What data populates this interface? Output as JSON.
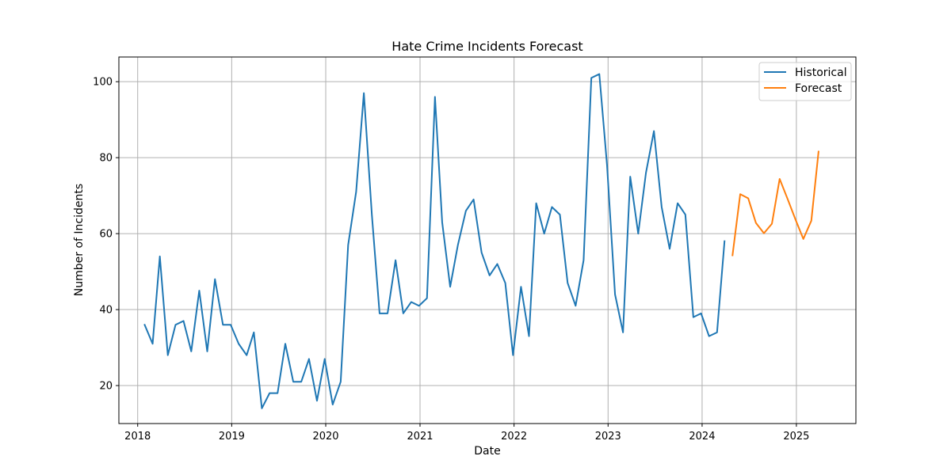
{
  "chart_data": {
    "type": "line",
    "title": "Hate Crime Incidents Forecast",
    "xlabel": "Date",
    "ylabel": "Number of Incidents",
    "xlim": [
      "2017-10-20",
      "2025-08-20"
    ],
    "ylim": [
      10,
      106.5
    ],
    "x_ticks": [
      "2018",
      "2019",
      "2020",
      "2021",
      "2022",
      "2023",
      "2024",
      "2025"
    ],
    "y_ticks": [
      20,
      40,
      60,
      80,
      100
    ],
    "grid": true,
    "legend_position": "top-right",
    "series": [
      {
        "name": "Historical",
        "color": "#1f77b4",
        "x": [
          "2018-01",
          "2018-02",
          "2018-03",
          "2018-04",
          "2018-05",
          "2018-06",
          "2018-07",
          "2018-08",
          "2018-09",
          "2018-10",
          "2018-11",
          "2018-12",
          "2019-01",
          "2019-02",
          "2019-03",
          "2019-04",
          "2019-05",
          "2019-06",
          "2019-07",
          "2019-08",
          "2019-09",
          "2019-10",
          "2019-11",
          "2019-12",
          "2020-01",
          "2020-02",
          "2020-03",
          "2020-04",
          "2020-05",
          "2020-06",
          "2020-07",
          "2020-08",
          "2020-09",
          "2020-10",
          "2020-11",
          "2020-12",
          "2021-01",
          "2021-02",
          "2021-03",
          "2021-04",
          "2021-05",
          "2021-06",
          "2021-07",
          "2021-08",
          "2021-09",
          "2021-10",
          "2021-11",
          "2021-12",
          "2022-01",
          "2022-02",
          "2022-03",
          "2022-04",
          "2022-05",
          "2022-06",
          "2022-07",
          "2022-08",
          "2022-09",
          "2022-10",
          "2022-11",
          "2022-12",
          "2023-01",
          "2023-02",
          "2023-03",
          "2023-04",
          "2023-05",
          "2023-06",
          "2023-07",
          "2023-08",
          "2023-09",
          "2023-10",
          "2023-11",
          "2023-12",
          "2024-01",
          "2024-02",
          "2024-03"
        ],
        "y": [
          36,
          31,
          54,
          28,
          36,
          37,
          29,
          45,
          29,
          48,
          36,
          36,
          31,
          28,
          34,
          14,
          18,
          18,
          31,
          21,
          21,
          27,
          16,
          27,
          15,
          21,
          57,
          71,
          97,
          65,
          39,
          39,
          53,
          39,
          42,
          41,
          43,
          96,
          63,
          46,
          57,
          66,
          69,
          55,
          49,
          52,
          47,
          28,
          46,
          33,
          68,
          60,
          67,
          65,
          47,
          41,
          53,
          101,
          102,
          78,
          44,
          34,
          75,
          60,
          76,
          87,
          67,
          56,
          68,
          65,
          38,
          39,
          33,
          34,
          58
        ]
      },
      {
        "name": "Forecast",
        "color": "#ff7f0e",
        "x": [
          "2024-04",
          "2024-05",
          "2024-06",
          "2024-07",
          "2024-08",
          "2024-09",
          "2024-10",
          "2024-11",
          "2024-12",
          "2025-01",
          "2025-02",
          "2025-03"
        ],
        "y": [
          54.3,
          70.4,
          69.3,
          62.8,
          60.1,
          62.6,
          74.4,
          69.1,
          63.8,
          58.6,
          63.4,
          81.6
        ]
      }
    ]
  }
}
